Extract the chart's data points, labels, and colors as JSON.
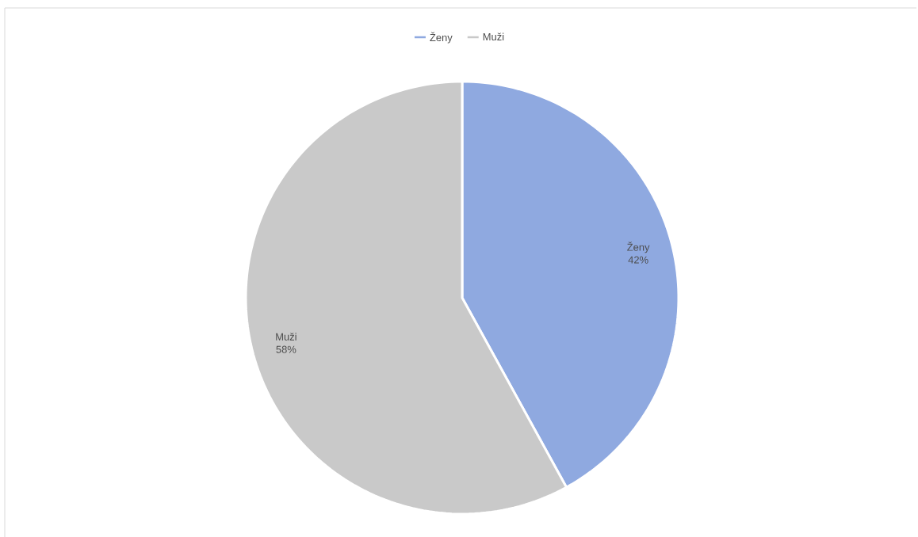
{
  "chart_data": {
    "type": "pie",
    "categories": [
      "Ženy",
      "Muži"
    ],
    "values": [
      42,
      58
    ],
    "value_labels": [
      "42%",
      "58%"
    ],
    "colors": [
      "#8fa9e0",
      "#c9c9c9"
    ],
    "legend": "top"
  }
}
